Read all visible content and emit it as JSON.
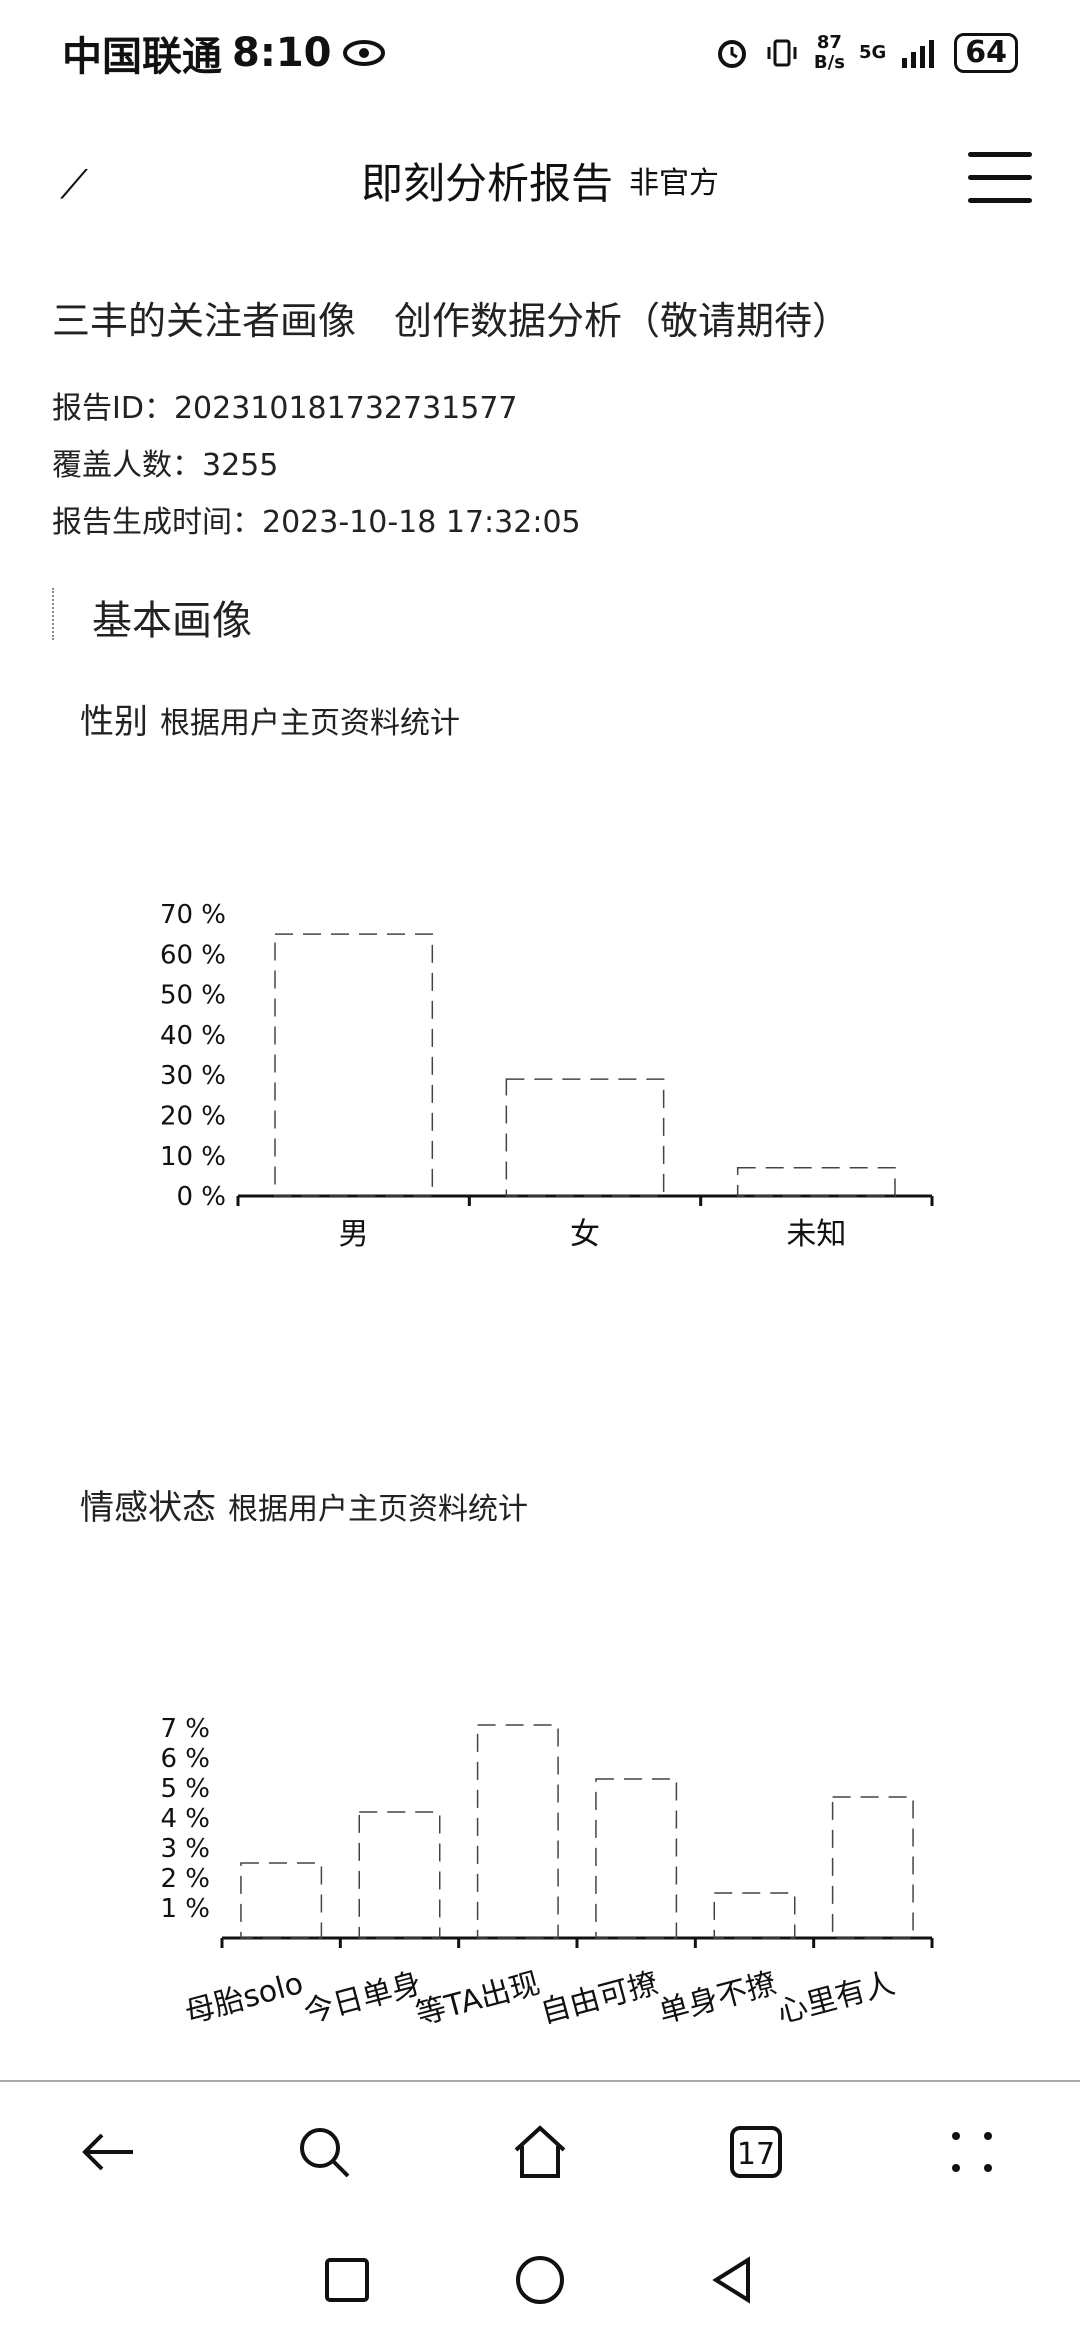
{
  "status_bar": {
    "carrier": "中国联通",
    "time": "8:10",
    "net_speed_value": "87",
    "net_speed_unit": "B/s",
    "network": "5G",
    "battery": "64"
  },
  "header": {
    "title": "即刻分析报告",
    "subtitle": "非官方"
  },
  "tabs": [
    {
      "label": "三丰的关注者画像"
    },
    {
      "label": "创作数据分析（敬请期待）"
    }
  ],
  "report": {
    "id_label": "报告ID：",
    "id_value": "202310181732731577",
    "count_label": "覆盖人数：",
    "count_value": "3255",
    "time_label": "报告生成时间：",
    "time_value": "2023-10-18 17:32:05"
  },
  "section": {
    "title": "基本画像"
  },
  "charts": {
    "gender": {
      "title": "性别",
      "subtitle": "根据用户主页资料统计"
    },
    "emotion": {
      "title": "情感状态",
      "subtitle": "根据用户主页资料统计"
    }
  },
  "chart_data": [
    {
      "type": "bar",
      "categories": [
        "男",
        "女",
        "未知"
      ],
      "values": [
        65,
        29,
        7
      ],
      "ylim": [
        0,
        70
      ],
      "y_ticks": [
        "0 %",
        "10 %",
        "20 %",
        "30 %",
        "40 %",
        "50 %",
        "60 %",
        "70 %"
      ],
      "grid": false
    },
    {
      "type": "bar",
      "categories": [
        "母胎solo",
        "今日单身",
        "等TA出现",
        "自由可撩",
        "单身不撩",
        "心里有人"
      ],
      "values": [
        2.5,
        4.2,
        7.1,
        5.3,
        1.5,
        4.7
      ],
      "ylim": [
        0,
        7
      ],
      "y_ticks": [
        "1 %",
        "2 %",
        "3 %",
        "4 %",
        "5 %",
        "6 %",
        "7 %"
      ],
      "grid": false
    }
  ]
}
